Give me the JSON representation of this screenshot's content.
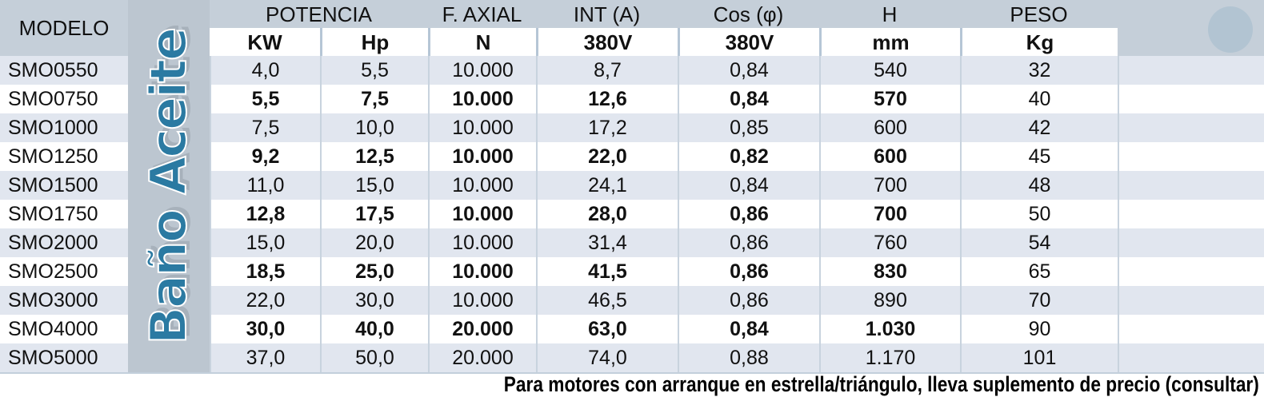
{
  "side_label": "Baño Aceite",
  "header": {
    "modelo": "MODELO",
    "groups": [
      {
        "label": "POTENCIA",
        "sub": [
          "KW",
          "Hp"
        ]
      },
      {
        "label": "F. AXIAL",
        "sub": [
          "N"
        ]
      },
      {
        "label": "INT (A)",
        "sub": [
          "380V"
        ]
      },
      {
        "label": "Cos (φ)",
        "sub": [
          "380V"
        ]
      },
      {
        "label": "H",
        "sub": [
          "mm"
        ]
      },
      {
        "label": "PESO",
        "sub": [
          "Kg"
        ]
      }
    ]
  },
  "rows": [
    {
      "modelo": "SMO0550",
      "kw": "4,0",
      "hp": "5,5",
      "f_axial": "10.000",
      "int_380v": "8,7",
      "cos_380v": "0,84",
      "h_mm": "540",
      "peso_kg": "32",
      "bold": false
    },
    {
      "modelo": "SMO0750",
      "kw": "5,5",
      "hp": "7,5",
      "f_axial": "10.000",
      "int_380v": "12,6",
      "cos_380v": "0,84",
      "h_mm": "570",
      "peso_kg": "40",
      "bold": true
    },
    {
      "modelo": "SMO1000",
      "kw": "7,5",
      "hp": "10,0",
      "f_axial": "10.000",
      "int_380v": "17,2",
      "cos_380v": "0,85",
      "h_mm": "600",
      "peso_kg": "42",
      "bold": false
    },
    {
      "modelo": "SMO1250",
      "kw": "9,2",
      "hp": "12,5",
      "f_axial": "10.000",
      "int_380v": "22,0",
      "cos_380v": "0,82",
      "h_mm": "600",
      "peso_kg": "45",
      "bold": true
    },
    {
      "modelo": "SMO1500",
      "kw": "11,0",
      "hp": "15,0",
      "f_axial": "10.000",
      "int_380v": "24,1",
      "cos_380v": "0,84",
      "h_mm": "700",
      "peso_kg": "48",
      "bold": false
    },
    {
      "modelo": "SMO1750",
      "kw": "12,8",
      "hp": "17,5",
      "f_axial": "10.000",
      "int_380v": "28,0",
      "cos_380v": "0,86",
      "h_mm": "700",
      "peso_kg": "50",
      "bold": true
    },
    {
      "modelo": "SMO2000",
      "kw": "15,0",
      "hp": "20,0",
      "f_axial": "10.000",
      "int_380v": "31,4",
      "cos_380v": "0,86",
      "h_mm": "760",
      "peso_kg": "54",
      "bold": false
    },
    {
      "modelo": "SMO2500",
      "kw": "18,5",
      "hp": "25,0",
      "f_axial": "10.000",
      "int_380v": "41,5",
      "cos_380v": "0,86",
      "h_mm": "830",
      "peso_kg": "65",
      "bold": true
    },
    {
      "modelo": "SMO3000",
      "kw": "22,0",
      "hp": "30,0",
      "f_axial": "10.000",
      "int_380v": "46,5",
      "cos_380v": "0,86",
      "h_mm": "890",
      "peso_kg": "70",
      "bold": false
    },
    {
      "modelo": "SMO4000",
      "kw": "30,0",
      "hp": "40,0",
      "f_axial": "20.000",
      "int_380v": "63,0",
      "cos_380v": "0,84",
      "h_mm": "1.030",
      "peso_kg": "90",
      "bold": true
    },
    {
      "modelo": "SMO5000",
      "kw": "37,0",
      "hp": "50,0",
      "f_axial": "20.000",
      "int_380v": "74,0",
      "cos_380v": "0,88",
      "h_mm": "1.170",
      "peso_kg": "101",
      "bold": false
    }
  ],
  "footer_note": "Para motores con arranque en estrella/triángulo, lleva suplemento de precio (consultar)",
  "colors": {
    "header_bg": "#c5cfd9",
    "strip_bg": "#bcc6d0",
    "row_light_bg": "#e1e6ef",
    "row_white_bg": "#ffffff",
    "brand_teal": "#2b7aa2",
    "separator": "#c8d3de",
    "circle": "#b2c4d2"
  }
}
